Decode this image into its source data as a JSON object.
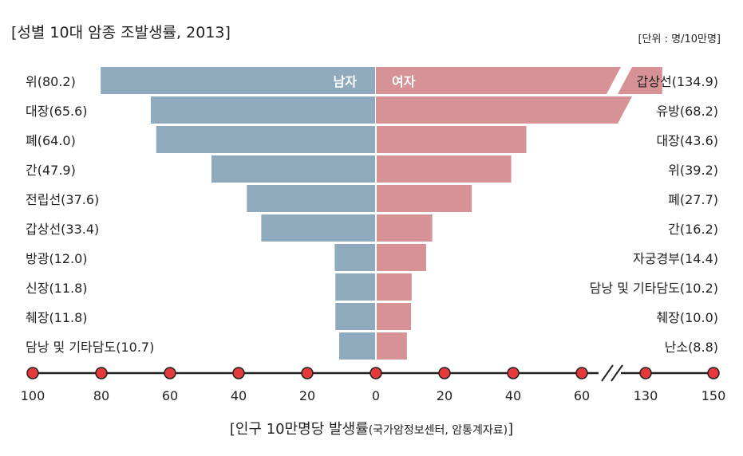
{
  "header": {
    "title": "[성별 10대 암종 조발생률, 2013]",
    "unit": "[단위 : 명/10만명]"
  },
  "source": {
    "main": "[인구 10만명당 발생률",
    "detail": "(국가암정보센터, 암통계자료)",
    "close": "]"
  },
  "chart_data": {
    "type": "bar",
    "orientation": "horizontal-population-pyramid",
    "colors": {
      "male": "#8fa9bd",
      "female": "#d69294",
      "axis": "#222222",
      "marker": "#e53a3a"
    },
    "series": [
      {
        "name": "남자",
        "categories": [
          "위",
          "대장",
          "폐",
          "간",
          "전립선",
          "갑상선",
          "방광",
          "신장",
          "췌장",
          "담낭 및 기타담도"
        ],
        "values": [
          80.2,
          65.6,
          64.0,
          47.9,
          37.6,
          33.4,
          12.0,
          11.8,
          11.8,
          10.7
        ],
        "labels": [
          "위(80.2)",
          "대장(65.6)",
          "폐(64.0)",
          "간(47.9)",
          "전립선(37.6)",
          "갑상선(33.4)",
          "방광(12.0)",
          "신장(11.8)",
          "췌장(11.8)",
          "담낭 및 기타담도(10.7)"
        ]
      },
      {
        "name": "여자",
        "categories": [
          "갑상선",
          "유방",
          "대장",
          "위",
          "폐",
          "간",
          "자궁경부",
          "담낭 및 기타담도",
          "췌장",
          "난소"
        ],
        "values": [
          134.9,
          68.2,
          43.6,
          39.2,
          27.7,
          16.2,
          14.4,
          10.2,
          10.0,
          8.8
        ],
        "labels": [
          "갑상선(134.9)",
          "유방(68.2)",
          "대장(43.6)",
          "위(39.2)",
          "폐(27.7)",
          "간(16.2)",
          "자궁경부(14.4)",
          "담낭 및 기타담도(10.2)",
          "췌장(10.0)",
          "난소(8.8)"
        ]
      }
    ],
    "x_axis": {
      "left_ticks": [
        100,
        80,
        60,
        40,
        20,
        0
      ],
      "right_ticks": [
        20,
        40,
        60,
        130,
        150
      ],
      "right_break": [
        60,
        130
      ]
    }
  }
}
